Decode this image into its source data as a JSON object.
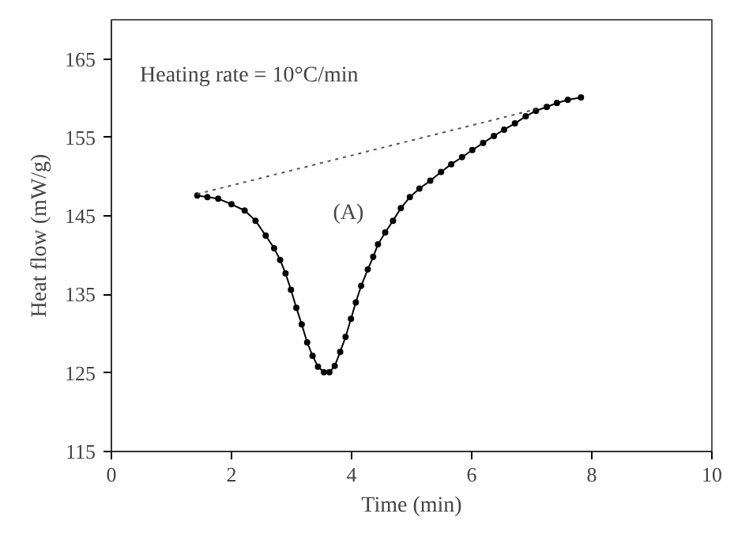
{
  "chart_data": {
    "type": "line",
    "xlabel": "Time (min)",
    "ylabel": "Heat flow (mW/g)",
    "annotations": [
      "Heating rate = 10°C/min",
      "(A)"
    ],
    "xlim": [
      0,
      10
    ],
    "ylim": [
      115,
      170
    ],
    "xticks": [
      0,
      2,
      4,
      6,
      8,
      10
    ],
    "yticks": [
      115,
      125,
      135,
      145,
      155,
      165
    ],
    "grid": false,
    "marker": "circle",
    "line_style": "solid",
    "series": [
      {
        "color": "#000000",
        "x": [
          1.43,
          1.6,
          1.78,
          2.0,
          2.22,
          2.4,
          2.57,
          2.71,
          2.81,
          2.9,
          2.99,
          3.08,
          3.17,
          3.26,
          3.35,
          3.44,
          3.54,
          3.63,
          3.72,
          3.81,
          3.9,
          3.99,
          4.07,
          4.16,
          4.27,
          4.36,
          4.44,
          4.56,
          4.69,
          4.82,
          4.97,
          5.13,
          5.31,
          5.49,
          5.66,
          5.84,
          6.01,
          6.19,
          6.37,
          6.54,
          6.72,
          6.9,
          7.07,
          7.25,
          7.42,
          7.6,
          7.82
        ],
        "values": [
          147.6,
          147.4,
          147.2,
          146.5,
          145.7,
          144.4,
          142.5,
          140.9,
          139.4,
          137.7,
          135.6,
          133.3,
          131.2,
          128.9,
          127.2,
          125.8,
          125.1,
          125.1,
          125.9,
          127.7,
          129.6,
          131.9,
          134.0,
          136.1,
          138.2,
          139.8,
          141.4,
          142.9,
          144.4,
          146.0,
          147.4,
          148.5,
          149.5,
          150.6,
          151.6,
          152.5,
          153.4,
          154.3,
          155.2,
          156.0,
          156.8,
          157.7,
          158.4,
          158.9,
          159.4,
          159.8,
          160.1
        ]
      },
      {
        "color": "#555555",
        "marker": "none",
        "line_style": "dotted",
        "x": [
          1.43,
          7.07
        ],
        "values": [
          147.8,
          158.6
        ]
      }
    ]
  }
}
